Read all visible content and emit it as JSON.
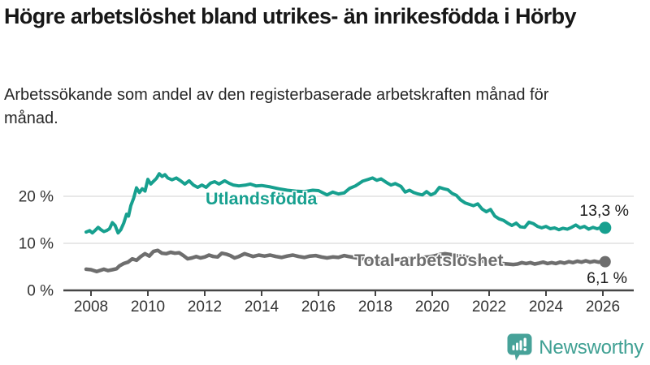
{
  "header": {
    "title": "Högre arbetslöshet bland utrikes- än inrikesfödda i Hörby",
    "subtitle": "Arbetssökande som andel av den registerbaserade arbetskraften månad för månad."
  },
  "footer": {
    "brand": "Newsworthy",
    "logo_icon": "newsworthy-speech-bubble-bar-chart-icon"
  },
  "colors": {
    "accent_teal": "#17A08F",
    "series_gray": "#6E6E6E",
    "grid_line": "#D9D9D9",
    "axis_line": "#454545",
    "tick_text": "#333333",
    "value_text": "#1A1A1A",
    "logo_teal": "#47A299",
    "logo_text_teal": "#3FA093"
  },
  "chart_data": {
    "type": "line",
    "title": "",
    "xlabel": "",
    "ylabel": "",
    "grid": "horizontal",
    "x_axis": {
      "ticks": [
        2008,
        2010,
        2012,
        2014,
        2016,
        2018,
        2020,
        2022,
        2024,
        2026
      ],
      "tick_labels": [
        "2008",
        "2010",
        "2012",
        "2014",
        "2016",
        "2018",
        "2020",
        "2022",
        "2024",
        "2026"
      ],
      "range": [
        2007.7,
        2026.5
      ]
    },
    "y_axis": {
      "ticks": [
        0,
        10,
        20
      ],
      "tick_labels": [
        "0 %",
        "10 %",
        "20 %"
      ],
      "range": [
        0,
        26
      ]
    },
    "series": [
      {
        "name": "Utlandsfödda",
        "color": "#17A08F",
        "end_value": 13.3,
        "end_label": "13,3 %",
        "points": [
          [
            2007.83,
            12.4
          ],
          [
            2007.95,
            12.7
          ],
          [
            2008.05,
            12.2
          ],
          [
            2008.15,
            12.8
          ],
          [
            2008.25,
            13.4
          ],
          [
            2008.35,
            12.9
          ],
          [
            2008.45,
            12.5
          ],
          [
            2008.55,
            12.7
          ],
          [
            2008.65,
            13.1
          ],
          [
            2008.75,
            14.4
          ],
          [
            2008.85,
            13.8
          ],
          [
            2008.95,
            12.2
          ],
          [
            2009.05,
            12.9
          ],
          [
            2009.15,
            14.3
          ],
          [
            2009.25,
            16.2
          ],
          [
            2009.32,
            15.8
          ],
          [
            2009.4,
            18.0
          ],
          [
            2009.5,
            19.6
          ],
          [
            2009.6,
            21.8
          ],
          [
            2009.7,
            20.8
          ],
          [
            2009.8,
            21.6
          ],
          [
            2009.9,
            21.1
          ],
          [
            2010.0,
            23.6
          ],
          [
            2010.1,
            22.6
          ],
          [
            2010.2,
            23.2
          ],
          [
            2010.3,
            23.8
          ],
          [
            2010.4,
            24.8
          ],
          [
            2010.5,
            24.2
          ],
          [
            2010.6,
            24.6
          ],
          [
            2010.7,
            23.9
          ],
          [
            2010.85,
            23.5
          ],
          [
            2011.0,
            23.9
          ],
          [
            2011.15,
            23.3
          ],
          [
            2011.3,
            22.6
          ],
          [
            2011.45,
            23.3
          ],
          [
            2011.6,
            22.4
          ],
          [
            2011.75,
            21.9
          ],
          [
            2011.9,
            22.4
          ],
          [
            2012.05,
            21.9
          ],
          [
            2012.2,
            22.8
          ],
          [
            2012.35,
            23.1
          ],
          [
            2012.5,
            22.6
          ],
          [
            2012.7,
            23.3
          ],
          [
            2012.85,
            22.8
          ],
          [
            2013.0,
            22.4
          ],
          [
            2013.2,
            22.2
          ],
          [
            2013.45,
            22.4
          ],
          [
            2013.6,
            22.6
          ],
          [
            2013.8,
            22.2
          ],
          [
            2014.0,
            22.3
          ],
          [
            2014.3,
            22.0
          ],
          [
            2014.6,
            21.6
          ],
          [
            2014.9,
            21.3
          ],
          [
            2015.2,
            21.1
          ],
          [
            2015.5,
            21.0
          ],
          [
            2015.8,
            21.3
          ],
          [
            2016.0,
            21.2
          ],
          [
            2016.3,
            20.3
          ],
          [
            2016.5,
            20.9
          ],
          [
            2016.7,
            20.5
          ],
          [
            2016.9,
            20.7
          ],
          [
            2017.1,
            21.7
          ],
          [
            2017.3,
            22.2
          ],
          [
            2017.55,
            23.2
          ],
          [
            2017.75,
            23.6
          ],
          [
            2017.9,
            23.9
          ],
          [
            2018.05,
            23.4
          ],
          [
            2018.2,
            23.7
          ],
          [
            2018.4,
            22.9
          ],
          [
            2018.55,
            22.4
          ],
          [
            2018.7,
            22.7
          ],
          [
            2018.9,
            22.1
          ],
          [
            2019.05,
            20.9
          ],
          [
            2019.2,
            21.3
          ],
          [
            2019.35,
            20.8
          ],
          [
            2019.5,
            20.5
          ],
          [
            2019.65,
            20.3
          ],
          [
            2019.8,
            21.0
          ],
          [
            2019.95,
            20.3
          ],
          [
            2020.1,
            20.7
          ],
          [
            2020.25,
            21.9
          ],
          [
            2020.4,
            21.6
          ],
          [
            2020.55,
            21.4
          ],
          [
            2020.7,
            20.6
          ],
          [
            2020.85,
            20.2
          ],
          [
            2021.0,
            19.2
          ],
          [
            2021.15,
            18.6
          ],
          [
            2021.3,
            18.3
          ],
          [
            2021.45,
            18.0
          ],
          [
            2021.6,
            18.4
          ],
          [
            2021.75,
            17.3
          ],
          [
            2021.9,
            16.7
          ],
          [
            2022.05,
            17.2
          ],
          [
            2022.2,
            15.8
          ],
          [
            2022.35,
            15.2
          ],
          [
            2022.5,
            14.9
          ],
          [
            2022.65,
            14.3
          ],
          [
            2022.8,
            13.8
          ],
          [
            2022.95,
            14.3
          ],
          [
            2023.1,
            13.5
          ],
          [
            2023.25,
            13.4
          ],
          [
            2023.4,
            14.5
          ],
          [
            2023.55,
            14.2
          ],
          [
            2023.7,
            13.6
          ],
          [
            2023.85,
            13.3
          ],
          [
            2024.0,
            13.6
          ],
          [
            2024.15,
            13.1
          ],
          [
            2024.3,
            13.3
          ],
          [
            2024.45,
            12.9
          ],
          [
            2024.6,
            13.2
          ],
          [
            2024.75,
            13.0
          ],
          [
            2024.9,
            13.4
          ],
          [
            2025.05,
            13.9
          ],
          [
            2025.2,
            13.3
          ],
          [
            2025.35,
            13.6
          ],
          [
            2025.5,
            13.0
          ],
          [
            2025.65,
            13.4
          ],
          [
            2025.8,
            13.1
          ],
          [
            2025.95,
            13.4
          ],
          [
            2026.08,
            13.3
          ]
        ]
      },
      {
        "name": "Total arbetslöshet",
        "color": "#6E6E6E",
        "end_value": 6.1,
        "end_label": "6,1 %",
        "points": [
          [
            2007.83,
            4.5
          ],
          [
            2008.0,
            4.4
          ],
          [
            2008.1,
            4.2
          ],
          [
            2008.2,
            4.0
          ],
          [
            2008.3,
            4.2
          ],
          [
            2008.45,
            4.5
          ],
          [
            2008.6,
            4.2
          ],
          [
            2008.75,
            4.4
          ],
          [
            2008.9,
            4.6
          ],
          [
            2009.0,
            5.2
          ],
          [
            2009.15,
            5.7
          ],
          [
            2009.3,
            6.0
          ],
          [
            2009.45,
            6.7
          ],
          [
            2009.6,
            6.4
          ],
          [
            2009.75,
            7.2
          ],
          [
            2009.9,
            7.8
          ],
          [
            2010.05,
            7.3
          ],
          [
            2010.2,
            8.3
          ],
          [
            2010.35,
            8.5
          ],
          [
            2010.5,
            7.9
          ],
          [
            2010.65,
            7.8
          ],
          [
            2010.8,
            8.1
          ],
          [
            2010.95,
            7.9
          ],
          [
            2011.1,
            8.0
          ],
          [
            2011.25,
            7.4
          ],
          [
            2011.4,
            6.7
          ],
          [
            2011.55,
            6.9
          ],
          [
            2011.7,
            7.2
          ],
          [
            2011.85,
            6.9
          ],
          [
            2012.0,
            7.1
          ],
          [
            2012.15,
            7.5
          ],
          [
            2012.3,
            7.2
          ],
          [
            2012.45,
            7.1
          ],
          [
            2012.6,
            7.9
          ],
          [
            2012.75,
            7.7
          ],
          [
            2012.9,
            7.4
          ],
          [
            2013.05,
            6.9
          ],
          [
            2013.2,
            7.2
          ],
          [
            2013.4,
            7.8
          ],
          [
            2013.55,
            7.5
          ],
          [
            2013.7,
            7.2
          ],
          [
            2013.9,
            7.5
          ],
          [
            2014.1,
            7.3
          ],
          [
            2014.3,
            7.5
          ],
          [
            2014.5,
            7.2
          ],
          [
            2014.7,
            7.0
          ],
          [
            2014.9,
            7.3
          ],
          [
            2015.1,
            7.5
          ],
          [
            2015.3,
            7.2
          ],
          [
            2015.5,
            7.0
          ],
          [
            2015.7,
            7.3
          ],
          [
            2015.9,
            7.4
          ],
          [
            2016.1,
            7.1
          ],
          [
            2016.3,
            6.9
          ],
          [
            2016.5,
            7.1
          ],
          [
            2016.7,
            7.0
          ],
          [
            2016.9,
            7.4
          ],
          [
            2017.05,
            7.2
          ],
          [
            2017.25,
            7.0
          ],
          [
            2017.45,
            6.8
          ],
          [
            2017.65,
            6.7
          ],
          [
            2017.85,
            6.6
          ],
          [
            2018.05,
            6.5
          ],
          [
            2018.25,
            6.6
          ],
          [
            2018.45,
            6.4
          ],
          [
            2018.65,
            6.5
          ],
          [
            2018.85,
            6.6
          ],
          [
            2019.05,
            6.7
          ],
          [
            2019.25,
            6.8
          ],
          [
            2019.45,
            6.9
          ],
          [
            2019.65,
            7.0
          ],
          [
            2019.85,
            7.1
          ],
          [
            2020.05,
            7.3
          ],
          [
            2020.25,
            7.6
          ],
          [
            2020.45,
            7.8
          ],
          [
            2020.65,
            7.6
          ],
          [
            2020.85,
            7.4
          ],
          [
            2021.05,
            7.2
          ],
          [
            2021.25,
            7.0
          ],
          [
            2021.45,
            6.8
          ],
          [
            2021.65,
            6.4
          ],
          [
            2021.85,
            6.1
          ],
          [
            2022.05,
            5.9
          ],
          [
            2022.25,
            5.8
          ],
          [
            2022.45,
            5.7
          ],
          [
            2022.65,
            5.6
          ],
          [
            2022.85,
            5.5
          ],
          [
            2023.0,
            5.6
          ],
          [
            2023.15,
            5.9
          ],
          [
            2023.3,
            5.7
          ],
          [
            2023.45,
            5.9
          ],
          [
            2023.6,
            5.6
          ],
          [
            2023.75,
            5.8
          ],
          [
            2023.9,
            6.0
          ],
          [
            2024.05,
            5.7
          ],
          [
            2024.2,
            5.9
          ],
          [
            2024.35,
            5.7
          ],
          [
            2024.5,
            6.0
          ],
          [
            2024.65,
            5.8
          ],
          [
            2024.8,
            6.1
          ],
          [
            2024.95,
            5.9
          ],
          [
            2025.1,
            6.2
          ],
          [
            2025.25,
            6.0
          ],
          [
            2025.4,
            6.3
          ],
          [
            2025.55,
            6.0
          ],
          [
            2025.7,
            6.2
          ],
          [
            2025.85,
            6.0
          ],
          [
            2026.0,
            6.2
          ],
          [
            2026.08,
            6.1
          ]
        ]
      }
    ],
    "legend_position": "inline-labels-on-lines"
  }
}
